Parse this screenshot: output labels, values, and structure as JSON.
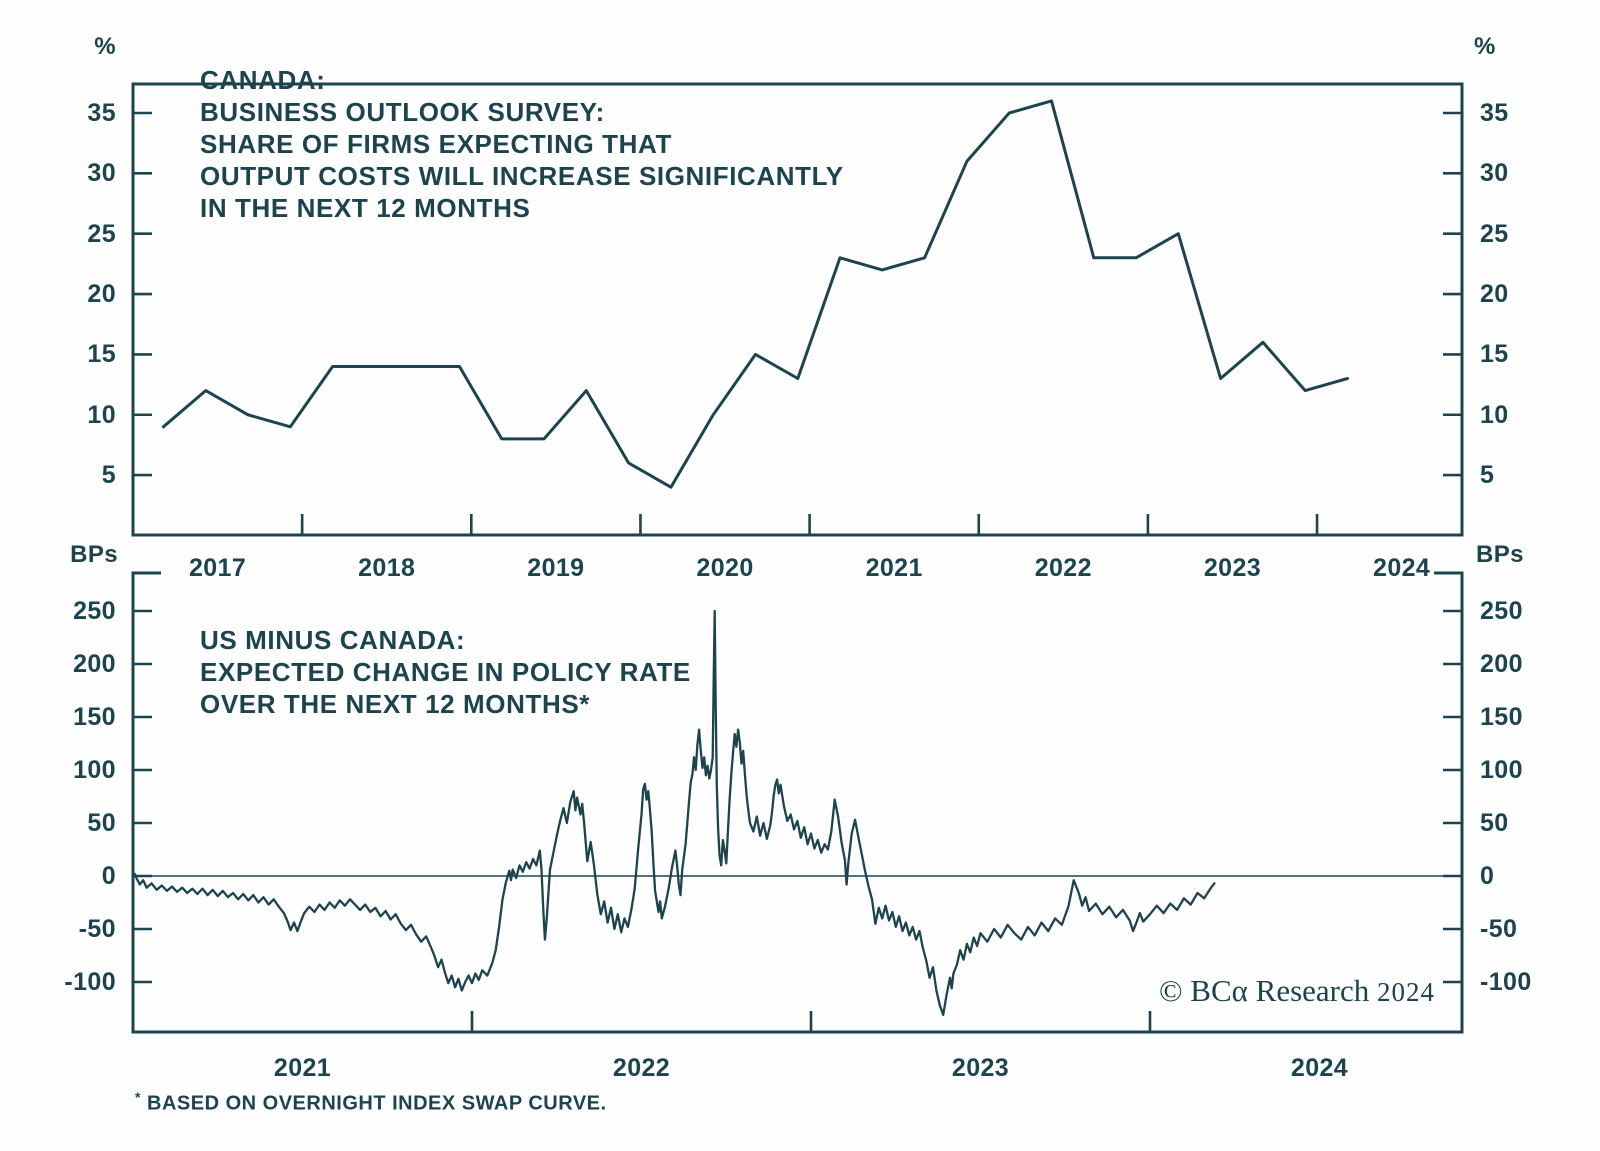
{
  "colors": {
    "ink": "#1c444e",
    "background": "#fefefe"
  },
  "top_panel": {
    "unit_left": "%",
    "unit_right": "%",
    "title_lines": [
      "CANADA:",
      "BUSINESS OUTLOOK SURVEY:",
      "SHARE OF FIRMS EXPECTING THAT",
      "OUTPUT COSTS WILL INCREASE SIGNIFICANTLY",
      "IN THE NEXT 12 MONTHS"
    ],
    "y_ticks": [
      "35",
      "30",
      "25",
      "20",
      "15",
      "10",
      "5"
    ],
    "x_labels": [
      "2017",
      "2018",
      "2019",
      "2020",
      "2021",
      "2022",
      "2023",
      "2024"
    ]
  },
  "bottom_panel": {
    "unit_left": "BPs",
    "unit_right": "BPs",
    "title_lines": [
      "US MINUS CANADA:",
      "EXPECTED CHANGE IN POLICY RATE",
      "OVER THE NEXT 12 MONTHS*"
    ],
    "y_ticks": [
      "250",
      "200",
      "150",
      "100",
      "50",
      "0",
      "-50",
      "-100"
    ],
    "x_labels": [
      "2021",
      "2022",
      "2023",
      "2024"
    ]
  },
  "footnote": {
    "star": "*",
    "text": " BASED ON OVERNIGHT INDEX SWAP CURVE."
  },
  "watermark": {
    "main": "© BCα Research",
    "year": "2024"
  },
  "chart_data": [
    {
      "type": "line",
      "title": "CANADA: BUSINESS OUTLOOK SURVEY: SHARE OF FIRMS EXPECTING THAT OUTPUT COSTS WILL INCREASE SIGNIFICANTLY IN THE NEXT 12 MONTHS",
      "ylabel": "%",
      "ylim": [
        0,
        37.4
      ],
      "yticks": [
        35,
        30,
        25,
        20,
        15,
        10,
        5
      ],
      "grid": false,
      "legend": "none",
      "x_axis": {
        "start_year": 2017,
        "end_year": 2024.86,
        "tick_years": [
          2018,
          2019,
          2020,
          2021,
          2022,
          2023,
          2024
        ]
      },
      "categories": [
        "2017Q1",
        "2017Q2",
        "2017Q3",
        "2017Q4",
        "2018Q1",
        "2018Q2",
        "2018Q3",
        "2018Q4",
        "2019Q1",
        "2019Q2",
        "2019Q3",
        "2019Q4",
        "2020Q1",
        "2020Q2",
        "2020Q3",
        "2020Q4",
        "2021Q1",
        "2021Q2",
        "2021Q3",
        "2021Q4",
        "2022Q1",
        "2022Q2",
        "2022Q3",
        "2022Q4",
        "2023Q1",
        "2023Q2",
        "2023Q3",
        "2023Q4",
        "2024Q1"
      ],
      "values": [
        9,
        12,
        10,
        9,
        14,
        14,
        14,
        14,
        8,
        8,
        12,
        6,
        4,
        10,
        15,
        13,
        23,
        22,
        23,
        31,
        35,
        36,
        23,
        23,
        25,
        13,
        16,
        12,
        13
      ]
    },
    {
      "type": "line",
      "title": "US MINUS CANADA: EXPECTED CHANGE IN POLICY RATE OVER THE NEXT 12 MONTHS (BASED ON OVERNIGHT INDEX SWAP CURVE)",
      "ylabel": "BPs",
      "ylim": [
        -147,
        286
      ],
      "yticks": [
        250,
        200,
        150,
        100,
        50,
        0,
        -50,
        -100
      ],
      "zero_line": true,
      "grid": false,
      "legend": "none",
      "x_axis": {
        "start_year": 2021,
        "end_year": 2024.92,
        "tick_years": [
          2022,
          2023,
          2024
        ]
      },
      "t_unit": "years since 2021-01-01",
      "points": [
        [
          0.005,
          2
        ],
        [
          0.01,
          -2
        ],
        [
          0.02,
          -8
        ],
        [
          0.03,
          -4
        ],
        [
          0.04,
          -11
        ],
        [
          0.055,
          -7
        ],
        [
          0.07,
          -13
        ],
        [
          0.085,
          -9
        ],
        [
          0.1,
          -14
        ],
        [
          0.115,
          -10
        ],
        [
          0.13,
          -15
        ],
        [
          0.145,
          -11
        ],
        [
          0.16,
          -16
        ],
        [
          0.175,
          -12
        ],
        [
          0.19,
          -17
        ],
        [
          0.205,
          -12
        ],
        [
          0.22,
          -18
        ],
        [
          0.235,
          -13
        ],
        [
          0.25,
          -19
        ],
        [
          0.265,
          -14
        ],
        [
          0.28,
          -20
        ],
        [
          0.295,
          -16
        ],
        [
          0.31,
          -22
        ],
        [
          0.325,
          -17
        ],
        [
          0.34,
          -23
        ],
        [
          0.355,
          -18
        ],
        [
          0.37,
          -25
        ],
        [
          0.385,
          -20
        ],
        [
          0.4,
          -27
        ],
        [
          0.415,
          -22
        ],
        [
          0.43,
          -29
        ],
        [
          0.445,
          -35
        ],
        [
          0.455,
          -42
        ],
        [
          0.465,
          -51
        ],
        [
          0.475,
          -44
        ],
        [
          0.485,
          -52
        ],
        [
          0.495,
          -43
        ],
        [
          0.505,
          -35
        ],
        [
          0.52,
          -29
        ],
        [
          0.535,
          -34
        ],
        [
          0.55,
          -27
        ],
        [
          0.565,
          -32
        ],
        [
          0.58,
          -25
        ],
        [
          0.595,
          -30
        ],
        [
          0.61,
          -23
        ],
        [
          0.625,
          -28
        ],
        [
          0.64,
          -22
        ],
        [
          0.655,
          -27
        ],
        [
          0.67,
          -32
        ],
        [
          0.685,
          -27
        ],
        [
          0.7,
          -34
        ],
        [
          0.715,
          -30
        ],
        [
          0.73,
          -38
        ],
        [
          0.745,
          -33
        ],
        [
          0.76,
          -41
        ],
        [
          0.775,
          -36
        ],
        [
          0.79,
          -45
        ],
        [
          0.805,
          -51
        ],
        [
          0.82,
          -46
        ],
        [
          0.835,
          -55
        ],
        [
          0.85,
          -62
        ],
        [
          0.865,
          -57
        ],
        [
          0.88,
          -68
        ],
        [
          0.89,
          -76
        ],
        [
          0.9,
          -86
        ],
        [
          0.91,
          -79
        ],
        [
          0.92,
          -91
        ],
        [
          0.93,
          -101
        ],
        [
          0.94,
          -94
        ],
        [
          0.95,
          -105
        ],
        [
          0.96,
          -97
        ],
        [
          0.97,
          -108
        ],
        [
          0.98,
          -100
        ],
        [
          0.99,
          -94
        ],
        [
          1.0,
          -101
        ],
        [
          1.01,
          -92
        ],
        [
          1.02,
          -98
        ],
        [
          1.03,
          -89
        ],
        [
          1.045,
          -94
        ],
        [
          1.06,
          -82
        ],
        [
          1.07,
          -70
        ],
        [
          1.08,
          -48
        ],
        [
          1.09,
          -22
        ],
        [
          1.1,
          -6
        ],
        [
          1.11,
          5
        ],
        [
          1.115,
          -4
        ],
        [
          1.12,
          6
        ],
        [
          1.13,
          -2
        ],
        [
          1.14,
          10
        ],
        [
          1.15,
          4
        ],
        [
          1.16,
          13
        ],
        [
          1.17,
          7
        ],
        [
          1.18,
          16
        ],
        [
          1.19,
          10
        ],
        [
          1.2,
          24
        ],
        [
          1.205,
          6
        ],
        [
          1.21,
          -30
        ],
        [
          1.215,
          -60
        ],
        [
          1.22,
          -42
        ],
        [
          1.225,
          -18
        ],
        [
          1.23,
          6
        ],
        [
          1.24,
          22
        ],
        [
          1.25,
          38
        ],
        [
          1.26,
          52
        ],
        [
          1.27,
          64
        ],
        [
          1.28,
          50
        ],
        [
          1.29,
          70
        ],
        [
          1.3,
          80
        ],
        [
          1.305,
          62
        ],
        [
          1.31,
          74
        ],
        [
          1.32,
          58
        ],
        [
          1.325,
          68
        ],
        [
          1.33,
          52
        ],
        [
          1.34,
          14
        ],
        [
          1.35,
          32
        ],
        [
          1.36,
          10
        ],
        [
          1.37,
          -18
        ],
        [
          1.38,
          -36
        ],
        [
          1.39,
          -24
        ],
        [
          1.4,
          -44
        ],
        [
          1.41,
          -30
        ],
        [
          1.42,
          -50
        ],
        [
          1.43,
          -36
        ],
        [
          1.44,
          -53
        ],
        [
          1.45,
          -40
        ],
        [
          1.46,
          -48
        ],
        [
          1.47,
          -32
        ],
        [
          1.48,
          -12
        ],
        [
          1.49,
          25
        ],
        [
          1.5,
          58
        ],
        [
          1.505,
          82
        ],
        [
          1.51,
          87
        ],
        [
          1.515,
          72
        ],
        [
          1.52,
          80
        ],
        [
          1.525,
          62
        ],
        [
          1.53,
          42
        ],
        [
          1.535,
          12
        ],
        [
          1.54,
          -14
        ],
        [
          1.55,
          -34
        ],
        [
          1.555,
          -24
        ],
        [
          1.56,
          -40
        ],
        [
          1.57,
          -28
        ],
        [
          1.58,
          -12
        ],
        [
          1.59,
          8
        ],
        [
          1.6,
          24
        ],
        [
          1.605,
          10
        ],
        [
          1.61,
          -8
        ],
        [
          1.615,
          -18
        ],
        [
          1.62,
          6
        ],
        [
          1.63,
          30
        ],
        [
          1.64,
          70
        ],
        [
          1.645,
          88
        ],
        [
          1.65,
          96
        ],
        [
          1.655,
          112
        ],
        [
          1.66,
          100
        ],
        [
          1.665,
          124
        ],
        [
          1.67,
          138
        ],
        [
          1.675,
          118
        ],
        [
          1.68,
          102
        ],
        [
          1.685,
          112
        ],
        [
          1.69,
          95
        ],
        [
          1.695,
          104
        ],
        [
          1.7,
          92
        ],
        [
          1.705,
          100
        ],
        [
          1.71,
          112
        ],
        [
          1.713,
          185
        ],
        [
          1.716,
          250
        ],
        [
          1.719,
          160
        ],
        [
          1.722,
          85
        ],
        [
          1.726,
          45
        ],
        [
          1.73,
          20
        ],
        [
          1.735,
          10
        ],
        [
          1.74,
          34
        ],
        [
          1.745,
          24
        ],
        [
          1.75,
          12
        ],
        [
          1.755,
          42
        ],
        [
          1.76,
          72
        ],
        [
          1.765,
          96
        ],
        [
          1.77,
          116
        ],
        [
          1.775,
          134
        ],
        [
          1.78,
          122
        ],
        [
          1.785,
          138
        ],
        [
          1.79,
          126
        ],
        [
          1.795,
          106
        ],
        [
          1.8,
          118
        ],
        [
          1.805,
          96
        ],
        [
          1.81,
          76
        ],
        [
          1.815,
          62
        ],
        [
          1.82,
          50
        ],
        [
          1.83,
          42
        ],
        [
          1.84,
          56
        ],
        [
          1.85,
          38
        ],
        [
          1.86,
          50
        ],
        [
          1.87,
          35
        ],
        [
          1.88,
          48
        ],
        [
          1.885,
          60
        ],
        [
          1.89,
          76
        ],
        [
          1.895,
          86
        ],
        [
          1.9,
          91
        ],
        [
          1.905,
          78
        ],
        [
          1.91,
          86
        ],
        [
          1.92,
          66
        ],
        [
          1.93,
          52
        ],
        [
          1.94,
          58
        ],
        [
          1.95,
          44
        ],
        [
          1.96,
          52
        ],
        [
          1.97,
          36
        ],
        [
          1.98,
          46
        ],
        [
          1.99,
          30
        ],
        [
          2.0,
          40
        ],
        [
          2.01,
          26
        ],
        [
          2.02,
          34
        ],
        [
          2.03,
          22
        ],
        [
          2.04,
          30
        ],
        [
          2.05,
          25
        ],
        [
          2.06,
          42
        ],
        [
          2.07,
          72
        ],
        [
          2.08,
          56
        ],
        [
          2.09,
          32
        ],
        [
          2.1,
          15
        ],
        [
          2.105,
          -8
        ],
        [
          2.11,
          12
        ],
        [
          2.12,
          40
        ],
        [
          2.13,
          53
        ],
        [
          2.14,
          36
        ],
        [
          2.15,
          20
        ],
        [
          2.16,
          4
        ],
        [
          2.17,
          -10
        ],
        [
          2.18,
          -22
        ],
        [
          2.19,
          -45
        ],
        [
          2.2,
          -30
        ],
        [
          2.21,
          -40
        ],
        [
          2.22,
          -28
        ],
        [
          2.23,
          -42
        ],
        [
          2.24,
          -34
        ],
        [
          2.25,
          -48
        ],
        [
          2.26,
          -38
        ],
        [
          2.27,
          -52
        ],
        [
          2.28,
          -44
        ],
        [
          2.29,
          -56
        ],
        [
          2.3,
          -48
        ],
        [
          2.31,
          -60
        ],
        [
          2.32,
          -52
        ],
        [
          2.33,
          -68
        ],
        [
          2.34,
          -80
        ],
        [
          2.35,
          -96
        ],
        [
          2.36,
          -86
        ],
        [
          2.37,
          -108
        ],
        [
          2.38,
          -122
        ],
        [
          2.39,
          -131
        ],
        [
          2.4,
          -112
        ],
        [
          2.41,
          -96
        ],
        [
          2.415,
          -106
        ],
        [
          2.42,
          -92
        ],
        [
          2.43,
          -84
        ],
        [
          2.44,
          -70
        ],
        [
          2.45,
          -79
        ],
        [
          2.46,
          -64
        ],
        [
          2.47,
          -72
        ],
        [
          2.48,
          -58
        ],
        [
          2.49,
          -66
        ],
        [
          2.5,
          -54
        ],
        [
          2.52,
          -62
        ],
        [
          2.54,
          -50
        ],
        [
          2.56,
          -58
        ],
        [
          2.58,
          -46
        ],
        [
          2.6,
          -54
        ],
        [
          2.62,
          -60
        ],
        [
          2.64,
          -48
        ],
        [
          2.66,
          -56
        ],
        [
          2.68,
          -44
        ],
        [
          2.7,
          -52
        ],
        [
          2.72,
          -40
        ],
        [
          2.74,
          -46
        ],
        [
          2.76,
          -28
        ],
        [
          2.775,
          -4
        ],
        [
          2.79,
          -16
        ],
        [
          2.8,
          -28
        ],
        [
          2.81,
          -20
        ],
        [
          2.82,
          -33
        ],
        [
          2.84,
          -26
        ],
        [
          2.86,
          -36
        ],
        [
          2.88,
          -29
        ],
        [
          2.9,
          -39
        ],
        [
          2.92,
          -32
        ],
        [
          2.94,
          -42
        ],
        [
          2.95,
          -52
        ],
        [
          2.96,
          -44
        ],
        [
          2.97,
          -35
        ],
        [
          2.98,
          -43
        ],
        [
          3.0,
          -36
        ],
        [
          3.02,
          -28
        ],
        [
          3.04,
          -35
        ],
        [
          3.06,
          -26
        ],
        [
          3.08,
          -32
        ],
        [
          3.1,
          -21
        ],
        [
          3.12,
          -27
        ],
        [
          3.14,
          -16
        ],
        [
          3.16,
          -21
        ],
        [
          3.18,
          -11
        ],
        [
          3.19,
          -7
        ]
      ]
    }
  ]
}
